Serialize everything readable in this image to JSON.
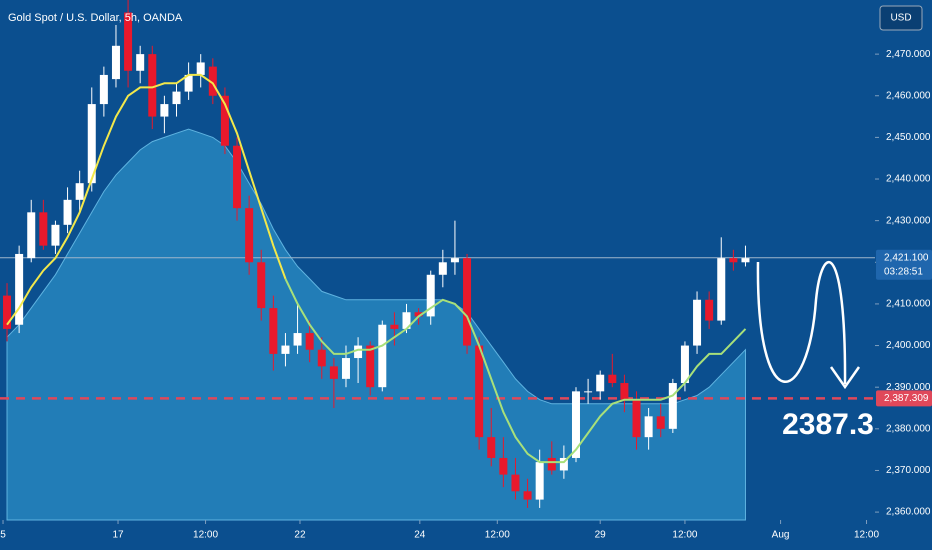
{
  "chart_data": {
    "type": "candlestick",
    "title": "Gold Spot / U.S. Dollar, 5h, OANDA",
    "currency": "USD",
    "categories": [
      null,
      null,
      null,
      null,
      null,
      null,
      null,
      null,
      null,
      null,
      null,
      null,
      null,
      null,
      null,
      null,
      null,
      null,
      null,
      null,
      null,
      null,
      null,
      null,
      null,
      null,
      null,
      null,
      null,
      null,
      null,
      null,
      null,
      null,
      null,
      null,
      null,
      null,
      null,
      null,
      null,
      null,
      null,
      null,
      null,
      null,
      null,
      null,
      null,
      null,
      null,
      null,
      null,
      null,
      null,
      null,
      null,
      null,
      null,
      null,
      null,
      null
    ],
    "open": [
      2412,
      2405,
      2421,
      2432,
      2424,
      2429,
      2435,
      2439,
      2458,
      2464,
      2480,
      2466,
      2470,
      2455,
      2458,
      2461,
      2465,
      2467,
      2460,
      2448,
      2433,
      2420,
      2409,
      2398,
      2400,
      2403,
      2399,
      2395,
      2392,
      2397,
      2400,
      2390,
      2405,
      2404,
      2408,
      2407,
      2417,
      2420,
      2421,
      2400,
      2378,
      2373,
      2369,
      2365,
      2363,
      2373,
      2370,
      2373,
      2389,
      2389,
      2393,
      2391,
      2387,
      2378,
      2383,
      2380,
      2391,
      2400,
      2411,
      2406,
      2421,
      2420
    ],
    "high": [
      2415,
      2424,
      2435,
      2435,
      2430,
      2438,
      2442,
      2462,
      2467,
      2477,
      2483,
      2472,
      2472,
      2460,
      2463,
      2468,
      2470,
      2469,
      2462,
      2450,
      2436,
      2423,
      2412,
      2403,
      2410,
      2406,
      2402,
      2397,
      2400,
      2402,
      2401,
      2406,
      2408,
      2410,
      2409,
      2418,
      2423,
      2430,
      2422,
      2402,
      2385,
      2378,
      2373,
      2368,
      2375,
      2377,
      2376,
      2390,
      2392,
      2394,
      2398,
      2393,
      2389,
      2385,
      2386,
      2392,
      2401,
      2413,
      2413,
      2426,
      2423,
      2424
    ],
    "low": [
      2401,
      2403,
      2420,
      2423,
      2422,
      2427,
      2432,
      2437,
      2455,
      2462,
      2462,
      2463,
      2452,
      2451,
      2455,
      2459,
      2462,
      2458,
      2446,
      2430,
      2417,
      2406,
      2394,
      2395,
      2398,
      2396,
      2392,
      2385,
      2390,
      2391,
      2388,
      2389,
      2400,
      2403,
      2405,
      2405,
      2414,
      2417,
      2398,
      2375,
      2371,
      2366,
      2363,
      2361,
      2361,
      2369,
      2368,
      2372,
      2386,
      2387,
      2390,
      2384,
      2375,
      2375,
      2378,
      2379,
      2389,
      2398,
      2404,
      2405,
      2418,
      2419
    ],
    "close": [
      2404,
      2422,
      2432,
      2424,
      2429,
      2435,
      2439,
      2458,
      2465,
      2472,
      2466,
      2470,
      2455,
      2458,
      2461,
      2465,
      2468,
      2460,
      2448,
      2433,
      2420,
      2409,
      2398,
      2400,
      2403,
      2399,
      2395,
      2392,
      2397,
      2400,
      2390,
      2405,
      2404,
      2408,
      2407,
      2417,
      2420,
      2421,
      2400,
      2378,
      2373,
      2369,
      2365,
      2363,
      2372,
      2370,
      2373,
      2389,
      2389,
      2393,
      2391,
      2387,
      2378,
      2383,
      2380,
      2391,
      2400,
      2411,
      2406,
      2421,
      2420,
      2421
    ],
    "up_color": "#ffffff",
    "down_color": "#e8192c",
    "lines": [
      {
        "color": "#f2e84b",
        "values": [
          2405,
          2409,
          2414,
          2418,
          2421,
          2426,
          2432,
          2440,
          2448,
          2455,
          2460,
          2462,
          2462,
          2463,
          2463,
          2465,
          2465,
          2463,
          2458,
          2451,
          2442,
          2433,
          2424,
          2416,
          null,
          null,
          null,
          null,
          null,
          null,
          null,
          null,
          null,
          null,
          null,
          null,
          null,
          null,
          null,
          null,
          null,
          null,
          null,
          null,
          null,
          null,
          null,
          null,
          null,
          null,
          null,
          null,
          null,
          null,
          null,
          null,
          null,
          null,
          null,
          null,
          null,
          null
        ]
      },
      {
        "color": "#a8e07a",
        "values": [
          null,
          null,
          null,
          null,
          null,
          null,
          null,
          null,
          null,
          null,
          null,
          null,
          null,
          null,
          null,
          null,
          null,
          null,
          null,
          null,
          null,
          null,
          null,
          2416,
          2410,
          2405,
          2401,
          2398,
          2398,
          2399,
          2399,
          2400,
          2402,
          2404,
          2407,
          2409,
          2411,
          2410,
          2407,
          2400,
          2392,
          2384,
          2378,
          2374,
          2372,
          2372,
          2372,
          2375,
          2379,
          2383,
          2386,
          2387,
          2387,
          2387,
          2387,
          2388,
          2391,
          2395,
          2398,
          2398,
          2401,
          2404
        ]
      }
    ],
    "area": {
      "color": "#2b8cc4",
      "values": [
        2402,
        2405,
        2409,
        2413,
        2417,
        2422,
        2427,
        2432,
        2437,
        2441,
        2444,
        2447,
        2449,
        2450,
        2451,
        2452,
        2451,
        2450,
        2448,
        2444,
        2439,
        2434,
        2428,
        2423,
        2419,
        2416,
        2413,
        2412,
        2411,
        2411,
        2411,
        2411,
        2411,
        2411,
        2411,
        2411,
        2411,
        2410,
        2408,
        2404,
        2400,
        2396,
        2392,
        2389,
        2387,
        2386,
        2386,
        2386,
        2386,
        2386,
        2386,
        2386,
        2386,
        2386,
        2386,
        2386,
        2387,
        2388,
        2390,
        2393,
        2396,
        2399
      ]
    },
    "ylim": [
      2358.1,
      2483
    ],
    "yticks": [
      {
        "value": 2360,
        "label": "2,360.000"
      },
      {
        "value": 2370,
        "label": "2,370.000"
      },
      {
        "value": 2380,
        "label": "2,380.000"
      },
      {
        "value": 2390,
        "label": "2,390.000"
      },
      {
        "value": 2400,
        "label": "2,400.000"
      },
      {
        "value": 2410,
        "label": "2,410.000"
      },
      {
        "value": 2420,
        "label": "2,420.000"
      },
      {
        "value": 2430,
        "label": "2,430.000"
      },
      {
        "value": 2440,
        "label": "2,440.000"
      },
      {
        "value": 2450,
        "label": "2,450.000"
      },
      {
        "value": 2460,
        "label": "2,460.000"
      },
      {
        "value": 2470,
        "label": "2,470.000"
      }
    ],
    "xlim": [
      -0.58,
      71.7
    ],
    "xticks": [
      {
        "value": -0.33,
        "label": "5"
      },
      {
        "value": 9.17,
        "label": "17"
      },
      {
        "value": 16.4,
        "label": "12:00"
      },
      {
        "value": 24.2,
        "label": "22"
      },
      {
        "value": 34.1,
        "label": "24"
      },
      {
        "value": 40.5,
        "label": "12:00"
      },
      {
        "value": 49.0,
        "label": "29"
      },
      {
        "value": 56.0,
        "label": "12:00"
      },
      {
        "value": 63.9,
        "label": "Aug"
      },
      {
        "value": 71.0,
        "label": "12:00"
      }
    ],
    "price_lines": [
      {
        "value": 2421.1,
        "label": "2,421.100",
        "countdown": "03:28:51",
        "color": "#9fb6cc",
        "box_color": "#1f66ad",
        "dashed": false
      },
      {
        "value": 2387.309,
        "label": "2,387.309",
        "color": "#e0485a",
        "box_color": "#e0485a",
        "dashed": true
      }
    ],
    "target_label": "2387.3"
  }
}
